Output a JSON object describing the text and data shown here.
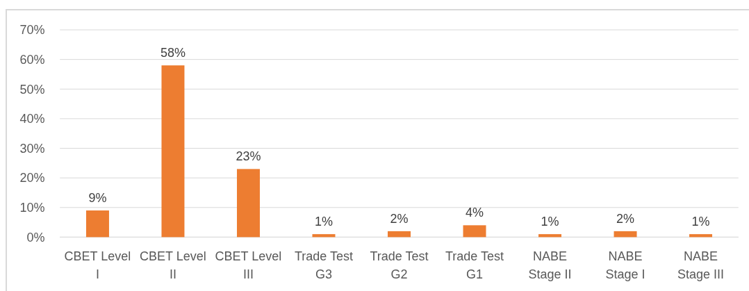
{
  "chart_data": {
    "type": "bar",
    "categories": [
      "CBET Level I",
      "CBET Level II",
      "CBET Level III",
      "Trade Test G3",
      "Trade Test G2",
      "Trade Test G1",
      "NABE Stage II",
      "NABE Stage I",
      "NABE Stage III"
    ],
    "values": [
      9,
      58,
      23,
      1,
      2,
      4,
      1,
      2,
      1
    ],
    "value_labels": [
      "9%",
      "58%",
      "23%",
      "1%",
      "2%",
      "4%",
      "1%",
      "2%",
      "1%"
    ],
    "color": "#ed7d31",
    "ylim": [
      0,
      70
    ],
    "yticks": [
      {
        "value": 0,
        "label": "0%"
      },
      {
        "value": 10,
        "label": "10%"
      },
      {
        "value": 20,
        "label": "20%"
      },
      {
        "value": 30,
        "label": "30%"
      },
      {
        "value": 40,
        "label": "40%"
      },
      {
        "value": 50,
        "label": "50%"
      },
      {
        "value": 60,
        "label": "60%"
      },
      {
        "value": 70,
        "label": "70%"
      }
    ],
    "grid": "y"
  }
}
